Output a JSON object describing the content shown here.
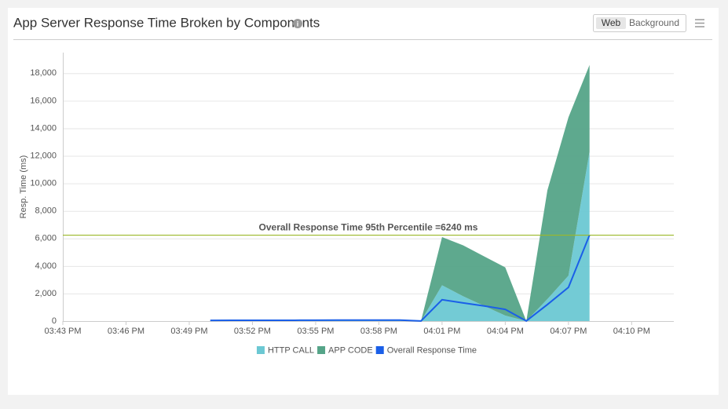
{
  "header": {
    "title": "App Server Response Time Broken by Components",
    "tabs": [
      "Web",
      "Background"
    ]
  },
  "chart_data": {
    "type": "stacked-area",
    "ylabel": "Resp. Time (ms)",
    "x": [
      "03:50 PM",
      "03:51 PM",
      "03:52 PM",
      "03:53 PM",
      "03:54 PM",
      "03:55 PM",
      "03:56 PM",
      "03:57 PM",
      "03:58 PM",
      "03:59 PM",
      "04:00 PM",
      "04:01 PM",
      "04:02 PM",
      "04:03 PM",
      "04:04 PM",
      "04:05 PM",
      "04:06 PM",
      "04:07 PM",
      "04:08 PM"
    ],
    "series": [
      {
        "name": "HTTP CALL",
        "color": "#6cc8d3",
        "values": [
          30,
          30,
          30,
          30,
          30,
          30,
          30,
          30,
          30,
          30,
          0,
          2600,
          1800,
          1100,
          400,
          0,
          1600,
          3300,
          12300
        ]
      },
      {
        "name": "APP CODE",
        "color": "#55a488",
        "values": [
          40,
          40,
          40,
          40,
          40,
          40,
          40,
          40,
          40,
          40,
          0,
          3500,
          3700,
          3600,
          3500,
          0,
          7900,
          11500,
          6300
        ]
      },
      {
        "name": "Overall Response Time",
        "color": "#1a5fe8",
        "type": "line",
        "values": [
          50,
          55,
          55,
          60,
          60,
          65,
          70,
          70,
          70,
          70,
          10,
          1550,
          1320,
          1100,
          850,
          10,
          1200,
          2450,
          6240
        ]
      }
    ],
    "annotation": {
      "value": 6240,
      "label": "Overall Response Time 95th Percentile =6240 ms",
      "color": "#9cb82a"
    },
    "xlim": [
      "03:43 PM",
      "04:12 PM"
    ],
    "xticks": [
      "03:43 PM",
      "03:46 PM",
      "03:49 PM",
      "03:52 PM",
      "03:55 PM",
      "03:58 PM",
      "04:01 PM",
      "04:04 PM",
      "04:07 PM",
      "04:10 PM"
    ],
    "ylim": [
      0,
      19500
    ],
    "yticks": [
      0,
      {
        "value": 2000,
        "label": "2,000"
      },
      {
        "value": 4000,
        "label": "4,000"
      },
      {
        "value": 6000,
        "label": "6,000"
      },
      {
        "value": 8000,
        "label": "8,000"
      },
      {
        "value": 10000,
        "label": "10,000"
      },
      {
        "value": 12000,
        "label": "12,000"
      },
      {
        "value": 14000,
        "label": "14,000"
      },
      {
        "value": 16000,
        "label": "16,000"
      },
      {
        "value": 18000,
        "label": "18,000"
      }
    ],
    "grid": true,
    "legend": "bottom"
  }
}
